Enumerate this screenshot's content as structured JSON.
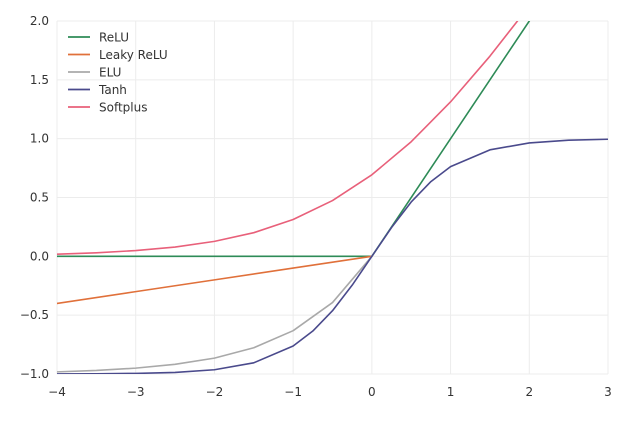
{
  "chart_data": {
    "type": "line",
    "title": "",
    "xlabel": "",
    "ylabel": "",
    "xlim": [
      -4,
      3
    ],
    "ylim": [
      -1.0,
      2.0
    ],
    "grid": true,
    "legend_position": "top-left",
    "x_ticks": [
      -4,
      -3,
      -2,
      -1,
      0,
      1,
      2,
      3
    ],
    "x_tick_labels": [
      "−4",
      "−3",
      "−2",
      "−1",
      "0",
      "1",
      "2",
      "3"
    ],
    "y_ticks": [
      -1.0,
      -0.5,
      0.0,
      0.5,
      1.0,
      1.5,
      2.0
    ],
    "y_tick_labels": [
      "−1.0",
      "−0.5",
      "0.0",
      "0.5",
      "1.0",
      "1.5",
      "2.0"
    ],
    "series": [
      {
        "name": "ReLU",
        "color": "#2e8b57",
        "x": [
          -4,
          0,
          2
        ],
        "y": [
          0,
          0,
          2
        ]
      },
      {
        "name": "Leaky ReLU",
        "color": "#e0703a",
        "x": [
          -4,
          -3,
          -2,
          -1,
          0
        ],
        "y": [
          -0.4,
          -0.3,
          -0.2,
          -0.1,
          0
        ]
      },
      {
        "name": "ELU",
        "color": "#a9a9a9",
        "x": [
          -4,
          -3.5,
          -3,
          -2.5,
          -2,
          -1.5,
          -1,
          -0.5,
          0
        ],
        "y": [
          -0.982,
          -0.97,
          -0.95,
          -0.918,
          -0.865,
          -0.777,
          -0.632,
          -0.393,
          0
        ]
      },
      {
        "name": "Tanh",
        "color": "#4a4a8c",
        "x": [
          -4,
          -3.5,
          -3,
          -2.5,
          -2,
          -1.5,
          -1,
          -0.75,
          -0.5,
          -0.25,
          0,
          0.25,
          0.5,
          0.75,
          1,
          1.5,
          2,
          2.5,
          3
        ],
        "y": [
          -0.999,
          -0.998,
          -0.995,
          -0.987,
          -0.964,
          -0.905,
          -0.762,
          -0.635,
          -0.462,
          -0.245,
          0,
          0.245,
          0.462,
          0.635,
          0.762,
          0.905,
          0.964,
          0.987,
          0.995
        ]
      },
      {
        "name": "Softplus",
        "color": "#e8607a",
        "x": [
          -4,
          -3.5,
          -3,
          -2.5,
          -2,
          -1.5,
          -1,
          -0.5,
          0,
          0.5,
          1,
          1.5,
          1.85
        ],
        "y": [
          0.018,
          0.03,
          0.049,
          0.079,
          0.127,
          0.201,
          0.313,
          0.474,
          0.693,
          0.974,
          1.313,
          1.701,
          2.0
        ]
      }
    ]
  }
}
